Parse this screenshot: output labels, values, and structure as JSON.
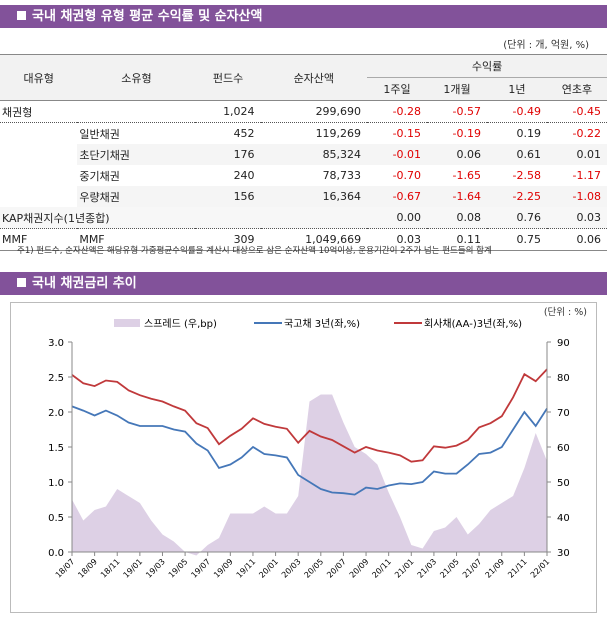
{
  "section1": {
    "title": "국내 채권형 유형 평균 수익률 및 순자산액",
    "unit": "(단위 : 개, 억원, %)"
  },
  "table": {
    "headers": {
      "major": "대유형",
      "minor": "소유형",
      "funds": "펀드수",
      "nav": "순자산액",
      "returns": "수익률",
      "w1": "1주일",
      "m1": "1개월",
      "y1": "1년",
      "ytd": "연초후"
    },
    "rows": [
      {
        "major": "채권형",
        "minor": "",
        "funds": "1,024",
        "nav": "299,690",
        "w1": "-0.28",
        "m1": "-0.57",
        "y1": "-0.49",
        "ytd": "-0.45"
      },
      {
        "major": "",
        "minor": "일반채권",
        "funds": "452",
        "nav": "119,269",
        "w1": "-0.15",
        "m1": "-0.19",
        "y1": "0.19",
        "ytd": "-0.22"
      },
      {
        "major": "",
        "minor": "초단기채권",
        "funds": "176",
        "nav": "85,324",
        "w1": "-0.01",
        "m1": "0.06",
        "y1": "0.61",
        "ytd": "0.01"
      },
      {
        "major": "",
        "minor": "중기채권",
        "funds": "240",
        "nav": "78,733",
        "w1": "-0.70",
        "m1": "-1.65",
        "y1": "-2.58",
        "ytd": "-1.17"
      },
      {
        "major": "",
        "minor": "우량채권",
        "funds": "156",
        "nav": "16,364",
        "w1": "-0.67",
        "m1": "-1.64",
        "y1": "-2.25",
        "ytd": "-1.08"
      },
      {
        "major": "KAP채권지수(1년종합)",
        "minor": "",
        "funds": "",
        "nav": "",
        "w1": "0.00",
        "m1": "0.08",
        "y1": "0.76",
        "ytd": "0.03"
      },
      {
        "major": "MMF",
        "minor": "MMF",
        "funds": "309",
        "nav": "1,049,669",
        "w1": "0.03",
        "m1": "0.11",
        "y1": "0.75",
        "ytd": "0.06"
      }
    ],
    "footnote": "주1) 펀드수, 순자산액은 해당유형 가중평균수익률을 계산시 대상으로 삼은 순자산액 10억이상, 운용기간이 2주가 넘는 펀드들의 합계"
  },
  "section2": {
    "title": "국내 채권금리 추이"
  },
  "colors": {
    "header": "#82529a",
    "negative": "#e00000",
    "spread": "#ddd0e5",
    "gov": "#4577b8",
    "corp": "#c0393b"
  },
  "chart_data": {
    "type": "line+area",
    "unit": "(단위 : %)",
    "legend_position": "top",
    "x": [
      "18/07",
      "18/08",
      "18/09",
      "18/10",
      "18/11",
      "18/12",
      "19/01",
      "19/02",
      "19/03",
      "19/04",
      "19/05",
      "19/06",
      "19/07",
      "19/08",
      "19/09",
      "19/10",
      "19/11",
      "19/12",
      "20/01",
      "20/02",
      "20/03",
      "20/04",
      "20/05",
      "20/06",
      "20/07",
      "20/08",
      "20/09",
      "20/10",
      "20/11",
      "20/12",
      "21/01",
      "21/02",
      "21/03",
      "21/04",
      "21/05",
      "21/06",
      "21/07",
      "21/08",
      "21/09",
      "21/10",
      "21/11",
      "21/12",
      "22/01"
    ],
    "xticks": [
      "18/07",
      "18/09",
      "18/11",
      "19/01",
      "19/03",
      "19/05",
      "19/07",
      "19/09",
      "19/11",
      "20/01",
      "20/03",
      "20/05",
      "20/07",
      "20/09",
      "20/11",
      "21/01",
      "21/03",
      "21/05",
      "21/07",
      "21/09",
      "21/11",
      "22/01"
    ],
    "left_axis": {
      "range": [
        0,
        3.0
      ],
      "ticks": [
        "0.0",
        "0.5",
        "1.0",
        "1.5",
        "2.0",
        "2.5",
        "3.0"
      ]
    },
    "right_axis": {
      "range": [
        30,
        90
      ],
      "ticks": [
        "30",
        "40",
        "50",
        "60",
        "70",
        "80",
        "90"
      ]
    },
    "series": [
      {
        "name": "스프레드 (우,bp)",
        "axis": "right",
        "type": "area",
        "values": [
          45,
          39,
          42,
          43,
          48,
          46,
          44,
          39,
          35,
          33,
          30,
          29,
          32,
          34,
          41,
          41,
          41,
          43,
          41,
          41,
          46,
          73,
          75,
          75,
          67,
          60,
          58,
          55,
          47,
          40,
          32,
          31,
          36,
          37,
          40,
          35,
          38,
          42,
          44,
          46,
          54,
          64,
          56
        ]
      },
      {
        "name": "국고채 3년(좌,%)",
        "axis": "left",
        "type": "line",
        "values": [
          2.08,
          2.02,
          1.95,
          2.02,
          1.95,
          1.85,
          1.8,
          1.8,
          1.8,
          1.75,
          1.72,
          1.55,
          1.45,
          1.2,
          1.25,
          1.35,
          1.5,
          1.4,
          1.38,
          1.35,
          1.1,
          1.0,
          0.9,
          0.85,
          0.84,
          0.82,
          0.92,
          0.9,
          0.95,
          0.98,
          0.97,
          1.0,
          1.15,
          1.12,
          1.12,
          1.25,
          1.4,
          1.42,
          1.5,
          1.75,
          2.0,
          1.8,
          2.05
        ]
      },
      {
        "name": "회사채(AA-)3년(좌,%)",
        "axis": "left",
        "type": "line",
        "values": [
          2.53,
          2.41,
          2.37,
          2.45,
          2.43,
          2.31,
          2.24,
          2.19,
          2.15,
          2.08,
          2.02,
          1.84,
          1.77,
          1.54,
          1.66,
          1.76,
          1.91,
          1.83,
          1.79,
          1.76,
          1.56,
          1.73,
          1.65,
          1.6,
          1.51,
          1.42,
          1.5,
          1.45,
          1.42,
          1.38,
          1.29,
          1.31,
          1.51,
          1.49,
          1.52,
          1.6,
          1.78,
          1.84,
          1.94,
          2.21,
          2.54,
          2.44,
          2.61
        ]
      }
    ]
  }
}
